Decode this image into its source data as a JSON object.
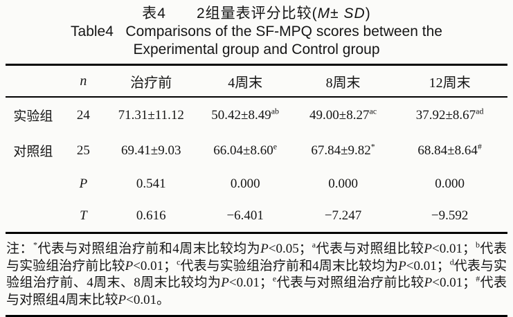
{
  "caption": {
    "zh_segments": [
      {
        "text": "表4　　2组量表评分比较("
      },
      {
        "italic": "M"
      },
      {
        "text": "± "
      },
      {
        "italic": "SD"
      },
      {
        "text": ")"
      }
    ],
    "en_line1": "Table4   Comparisons of the SF-MPQ scores between the",
    "en_line2": "Experimental group and Control group"
  },
  "table": {
    "headers": [
      "",
      "n",
      "治疗前",
      "4周末",
      "8周末",
      "12周末"
    ],
    "rows": [
      {
        "label": "实验组",
        "n": "24",
        "cells": [
          {
            "value": "71.31±11.12",
            "sup": ""
          },
          {
            "value": "50.42±8.49",
            "sup": "ab"
          },
          {
            "value": "49.00±8.27",
            "sup": "ac"
          },
          {
            "value": "37.92±8.67",
            "sup": "ad"
          }
        ]
      },
      {
        "label": "对照组",
        "n": "25",
        "cells": [
          {
            "value": "69.41±9.03",
            "sup": ""
          },
          {
            "value": "66.04±8.60",
            "sup": "e"
          },
          {
            "value": "67.84±9.82",
            "sup": "*"
          },
          {
            "value": "68.84±8.64",
            "sup": "#"
          }
        ]
      },
      {
        "label": "",
        "n": "P",
        "cells": [
          {
            "value": "0.541",
            "sup": ""
          },
          {
            "value": "0.000",
            "sup": ""
          },
          {
            "value": "0.000",
            "sup": ""
          },
          {
            "value": "0.000",
            "sup": ""
          }
        ]
      },
      {
        "label": "",
        "n": "T",
        "cells": [
          {
            "value": "0.616",
            "sup": ""
          },
          {
            "value": "−6.401",
            "sup": ""
          },
          {
            "value": "−7.247",
            "sup": ""
          },
          {
            "value": "−9.592",
            "sup": ""
          }
        ]
      }
    ]
  },
  "notes": {
    "segments": [
      {
        "text": "注："
      },
      {
        "sup": "*"
      },
      {
        "text": "代表与对照组治疗前和4周末比较均为"
      },
      {
        "italic": "P"
      },
      {
        "text": "<0.05；"
      },
      {
        "sup": "a"
      },
      {
        "text": "代表与对照组比较"
      },
      {
        "italic": "P"
      },
      {
        "text": "<0.01；"
      },
      {
        "sup": "b"
      },
      {
        "text": "代表与实验组治疗前比较"
      },
      {
        "italic": "P"
      },
      {
        "text": "<0.01；"
      },
      {
        "sup": "c"
      },
      {
        "text": "代表与实验组治疗前和4周末比较均为"
      },
      {
        "italic": "P"
      },
      {
        "text": "<0.01；"
      },
      {
        "sup": "d"
      },
      {
        "text": "代表与实验组治疗前、4周末、8周末比较均为"
      },
      {
        "italic": "P"
      },
      {
        "text": "<0.01；"
      },
      {
        "sup": "e"
      },
      {
        "text": "代表与对照组治疗前比较"
      },
      {
        "italic": "P"
      },
      {
        "text": "<0.01；"
      },
      {
        "sup": "#"
      },
      {
        "text": "代表与对照组4周末比较"
      },
      {
        "italic": "P"
      },
      {
        "text": "<0.01。"
      }
    ]
  }
}
